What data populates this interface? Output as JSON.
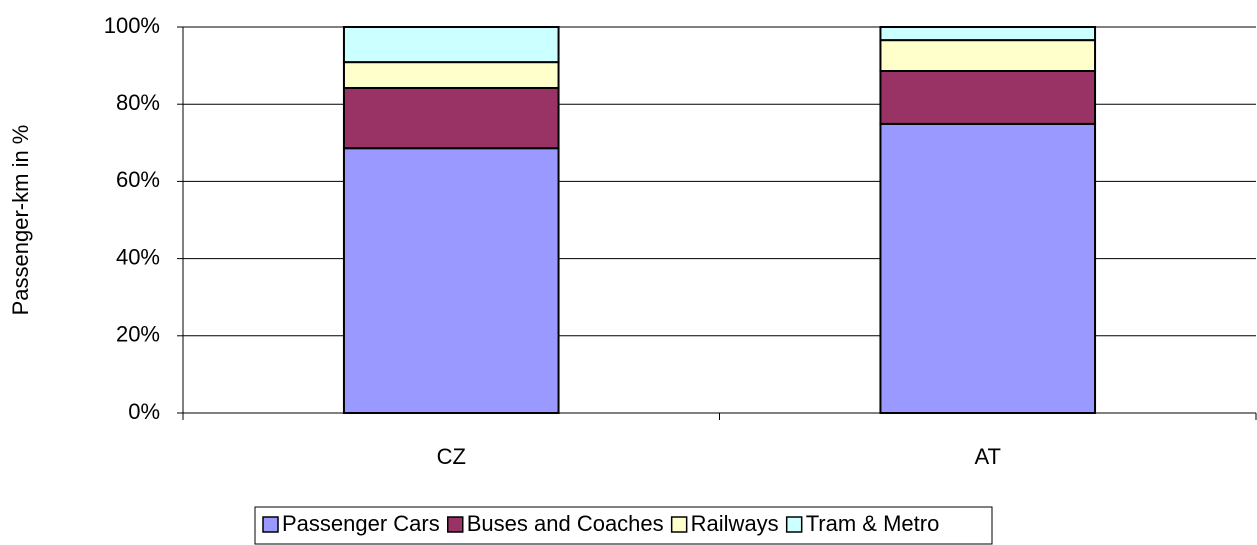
{
  "chart_data": {
    "type": "stacked_bar",
    "y_label": "Passenger-km in %",
    "categories": [
      "CZ",
      "AT"
    ],
    "series": [
      {
        "name": "Passenger Cars",
        "color": "#9999ff",
        "values": [
          68.6,
          74.9
        ]
      },
      {
        "name": "Buses and Coaches",
        "color": "#993366",
        "values": [
          15.6,
          13.7
        ]
      },
      {
        "name": "Railways",
        "color": "#ffffcc",
        "values": [
          6.7,
          8.0
        ]
      },
      {
        "name": "Tram & Metro",
        "color": "#ccffff",
        "values": [
          9.1,
          3.4
        ]
      }
    ],
    "ylim": [
      0,
      100
    ],
    "yticks": [
      {
        "value": 0,
        "label": "0%"
      },
      {
        "value": 20,
        "label": "20%"
      },
      {
        "value": 40,
        "label": "40%"
      },
      {
        "value": 60,
        "label": "60%"
      },
      {
        "value": 80,
        "label": "80%"
      },
      {
        "value": 100,
        "label": "100%"
      }
    ],
    "grid": true,
    "legend": "bottom"
  }
}
